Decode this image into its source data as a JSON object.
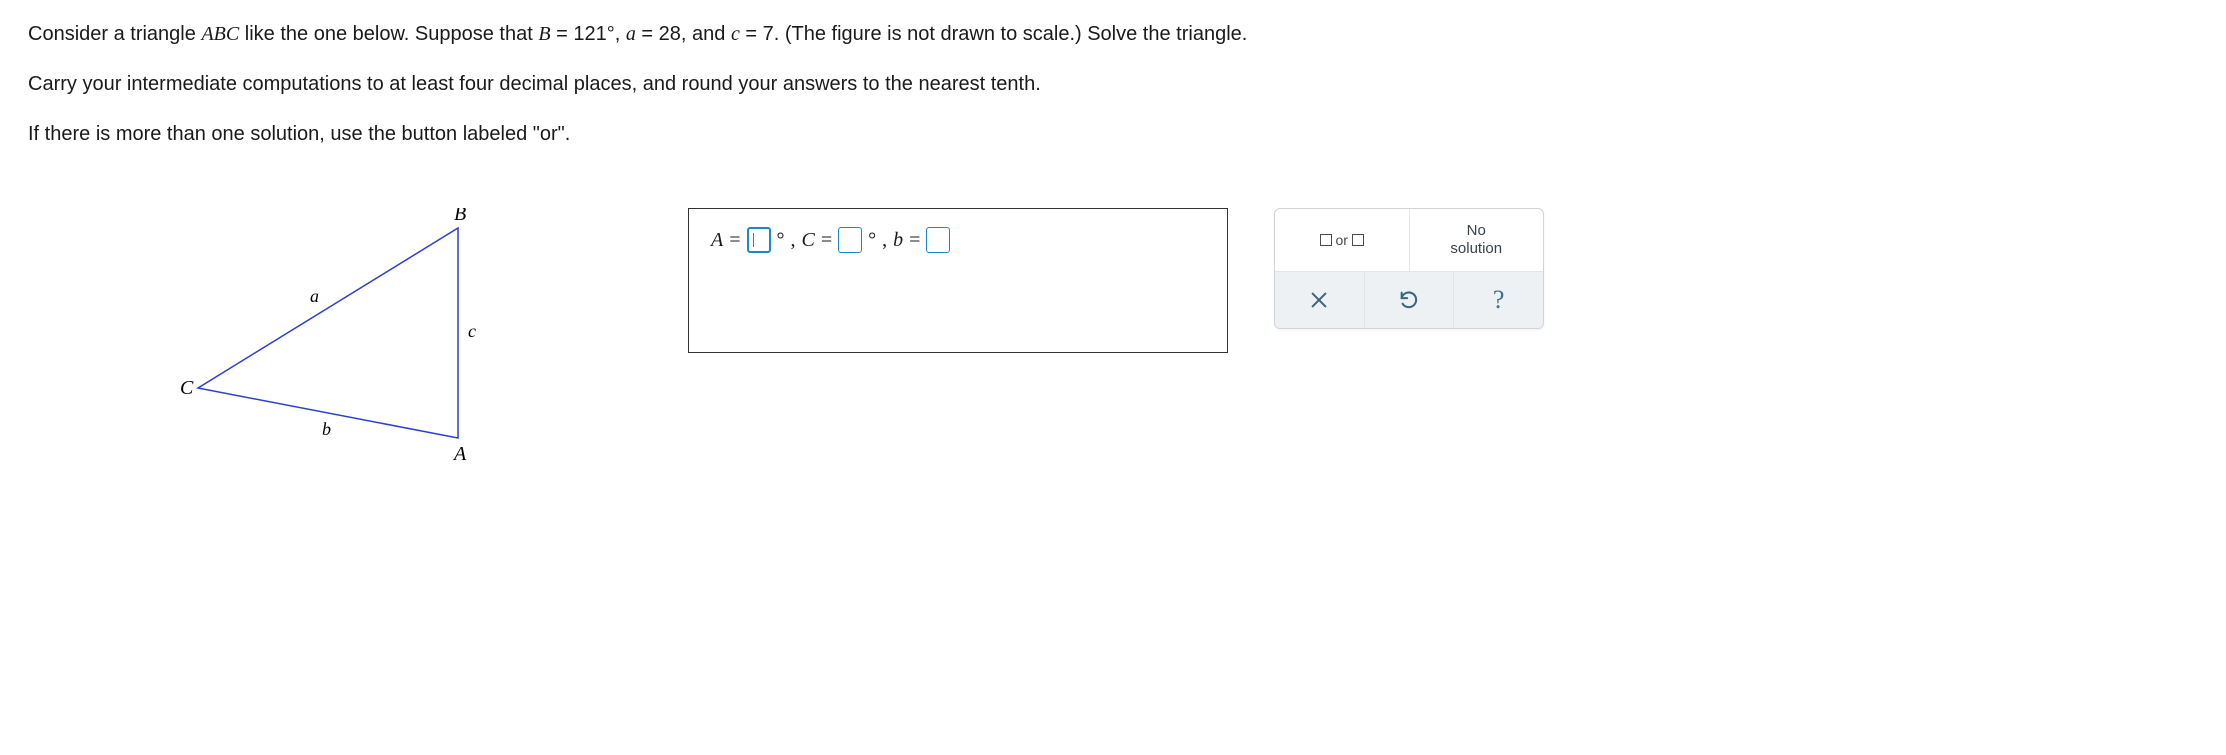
{
  "problem": {
    "line1_prefix": "Consider a triangle ",
    "triangle_name": "ABC",
    "line1_mid": " like the one below. Suppose that ",
    "given_B_lhs": "B",
    "given_B_rhs": "121°",
    "given_a_lhs": "a",
    "given_a_rhs": "28",
    "given_c_lhs": "c",
    "given_c_rhs": "7",
    "line1_suffix": ". (The figure is not drawn to scale.) Solve the triangle.",
    "line2": "Carry your intermediate computations to at least four decimal places, and round your answers to the nearest tenth.",
    "line3": "If there is more than one solution, use the button labeled \"or\"."
  },
  "figure": {
    "labels": {
      "A": "A",
      "B": "B",
      "C": "C",
      "a": "a",
      "b": "b",
      "c": "c"
    },
    "stroke_color": "#2b3fcf",
    "vertices": {
      "C": [
        20,
        180
      ],
      "B": [
        280,
        20
      ],
      "A": [
        280,
        230
      ]
    }
  },
  "answer": {
    "A_label": "A",
    "C_label": "C",
    "b_label": "b",
    "eq": "=",
    "deg": "°",
    "comma": ",",
    "A_value": "",
    "C_value": "",
    "b_value": ""
  },
  "controls": {
    "or_label": "or",
    "no_solution_l1": "No",
    "no_solution_l2": "solution",
    "help_glyph": "?"
  },
  "colors": {
    "input_border": "#1e88c7",
    "panel_border": "#d0d4d8",
    "panel_bottom_bg": "#eef1f3",
    "text": "#1a1a1a"
  }
}
